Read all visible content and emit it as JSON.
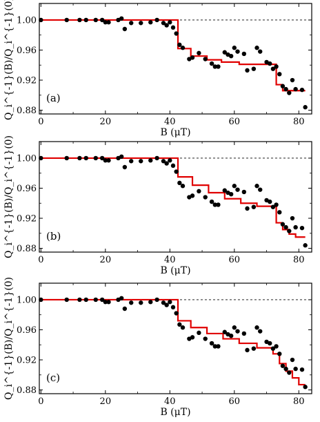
{
  "chart_data": [
    {
      "type": "scatter",
      "panel_label": "(a)",
      "xlabel": "B (μT)",
      "ylabel": "Q_i^{-1}(B)/Q_i^{-1}(0)",
      "xlim": [
        -0.5,
        84
      ],
      "ylim": [
        0.875,
        1.022
      ],
      "xticks": [
        "0",
        "20",
        "40",
        "60",
        "80"
      ],
      "yticks": [
        "0.88",
        "0.92",
        "0.96",
        "1.00"
      ],
      "reference_line": 1.0,
      "colors": {
        "points": "#000000",
        "fit": "#e00000",
        "reference": "#000000"
      },
      "points": {
        "x": [
          0,
          8,
          12,
          14,
          17,
          19,
          20,
          21,
          24,
          25,
          26,
          28,
          31,
          34,
          36,
          38,
          39,
          40,
          41,
          42,
          43,
          44,
          46,
          47,
          49,
          51,
          53,
          54,
          55,
          57,
          58,
          59,
          60,
          61,
          63,
          64,
          66,
          67,
          68,
          70,
          71,
          72,
          73,
          74,
          75,
          76,
          77,
          78,
          79,
          81,
          82
        ],
        "y": [
          1.0,
          1.0,
          1.0,
          1.0,
          1.0,
          1.0,
          0.997,
          0.997,
          1.0,
          1.002,
          0.988,
          0.996,
          0.996,
          0.997,
          1.0,
          0.996,
          0.993,
          0.997,
          0.99,
          0.982,
          0.967,
          0.963,
          0.948,
          0.95,
          0.956,
          0.948,
          0.942,
          0.938,
          0.938,
          0.957,
          0.954,
          0.952,
          0.963,
          0.958,
          0.955,
          0.933,
          0.935,
          0.963,
          0.958,
          0.944,
          0.942,
          0.935,
          0.938,
          0.928,
          0.912,
          0.908,
          0.903,
          0.92,
          0.908,
          0.907,
          0.884
        ]
      },
      "fit": {
        "x": [
          0,
          42.5,
          42.5,
          46.5,
          46.5,
          51.5,
          51.5,
          56,
          56,
          61.5,
          61.5,
          73,
          73,
          75,
          75,
          82
        ],
        "y": [
          1.0,
          1.0,
          0.962,
          0.962,
          0.952,
          0.952,
          0.947,
          0.947,
          0.944,
          0.944,
          0.941,
          0.941,
          0.914,
          0.914,
          0.906,
          0.906
        ]
      }
    },
    {
      "type": "scatter",
      "panel_label": "(b)",
      "xlabel": "B (μT)",
      "ylabel": "Q_i^{-1}(B)/Q_i^{-1}(0)",
      "xlim": [
        -0.5,
        84
      ],
      "ylim": [
        0.875,
        1.022
      ],
      "xticks": [
        "0",
        "20",
        "40",
        "60",
        "80"
      ],
      "yticks": [
        "0.88",
        "0.92",
        "0.96",
        "1.00"
      ],
      "reference_line": 1.0,
      "colors": {
        "points": "#000000",
        "fit": "#e00000",
        "reference": "#000000"
      },
      "points": {
        "x": [
          0,
          8,
          12,
          14,
          17,
          19,
          20,
          21,
          24,
          25,
          26,
          28,
          31,
          34,
          36,
          38,
          39,
          40,
          41,
          42,
          43,
          44,
          46,
          47,
          49,
          51,
          53,
          54,
          55,
          57,
          58,
          59,
          60,
          61,
          63,
          64,
          66,
          67,
          68,
          70,
          71,
          72,
          73,
          74,
          75,
          76,
          77,
          78,
          79,
          81,
          82
        ],
        "y": [
          1.0,
          1.0,
          1.0,
          1.0,
          1.0,
          1.0,
          0.997,
          0.997,
          1.0,
          1.002,
          0.988,
          0.996,
          0.996,
          0.997,
          1.0,
          0.996,
          0.993,
          0.997,
          0.99,
          0.982,
          0.967,
          0.963,
          0.948,
          0.95,
          0.956,
          0.948,
          0.942,
          0.938,
          0.938,
          0.957,
          0.954,
          0.952,
          0.963,
          0.958,
          0.955,
          0.933,
          0.935,
          0.963,
          0.958,
          0.944,
          0.942,
          0.935,
          0.938,
          0.928,
          0.912,
          0.908,
          0.903,
          0.92,
          0.908,
          0.907,
          0.884
        ]
      },
      "fit": {
        "x": [
          0,
          42.5,
          42.5,
          47,
          47,
          52,
          52,
          57,
          57,
          62,
          62,
          67,
          67,
          73,
          73,
          75,
          75,
          77,
          77,
          79,
          79,
          82
        ],
        "y": [
          1.0,
          1.0,
          0.975,
          0.975,
          0.964,
          0.964,
          0.954,
          0.954,
          0.946,
          0.946,
          0.94,
          0.94,
          0.936,
          0.936,
          0.914,
          0.914,
          0.905,
          0.905,
          0.899,
          0.899,
          0.895,
          0.895
        ]
      }
    },
    {
      "type": "scatter",
      "panel_label": "(c)",
      "xlabel": "B (μT)",
      "ylabel": "Q_i^{-1}(B)/Q_i^{-1}(0)",
      "xlim": [
        -0.5,
        84
      ],
      "ylim": [
        0.875,
        1.022
      ],
      "xticks": [
        "0",
        "20",
        "40",
        "60",
        "80"
      ],
      "yticks": [
        "0.88",
        "0.92",
        "0.96",
        "1.00"
      ],
      "reference_line": 1.0,
      "colors": {
        "points": "#000000",
        "fit": "#e00000",
        "reference": "#000000"
      },
      "points": {
        "x": [
          0,
          8,
          12,
          14,
          17,
          19,
          20,
          21,
          24,
          25,
          26,
          28,
          31,
          34,
          36,
          38,
          39,
          40,
          41,
          42,
          43,
          44,
          46,
          47,
          49,
          51,
          53,
          54,
          55,
          57,
          58,
          59,
          60,
          61,
          63,
          64,
          66,
          67,
          68,
          70,
          71,
          72,
          73,
          74,
          75,
          76,
          77,
          78,
          79,
          81,
          82
        ],
        "y": [
          1.0,
          1.0,
          1.0,
          1.0,
          1.0,
          1.0,
          0.997,
          0.997,
          1.0,
          1.002,
          0.988,
          0.996,
          0.996,
          0.997,
          1.0,
          0.996,
          0.993,
          0.997,
          0.99,
          0.982,
          0.967,
          0.963,
          0.948,
          0.95,
          0.956,
          0.948,
          0.942,
          0.938,
          0.938,
          0.957,
          0.954,
          0.952,
          0.963,
          0.958,
          0.955,
          0.933,
          0.935,
          0.963,
          0.958,
          0.944,
          0.942,
          0.935,
          0.938,
          0.928,
          0.912,
          0.908,
          0.903,
          0.92,
          0.908,
          0.907,
          0.884
        ]
      },
      "fit": {
        "x": [
          0,
          42.5,
          42.5,
          46.5,
          46.5,
          51.5,
          51.5,
          56.5,
          56.5,
          61.5,
          61.5,
          67,
          67,
          72,
          72,
          74,
          74,
          76,
          76,
          78,
          78,
          80,
          80,
          82
        ],
        "y": [
          1.0,
          1.0,
          0.972,
          0.972,
          0.963,
          0.963,
          0.955,
          0.955,
          0.948,
          0.948,
          0.942,
          0.942,
          0.936,
          0.936,
          0.928,
          0.928,
          0.915,
          0.915,
          0.905,
          0.905,
          0.896,
          0.896,
          0.887,
          0.887
        ]
      }
    }
  ]
}
